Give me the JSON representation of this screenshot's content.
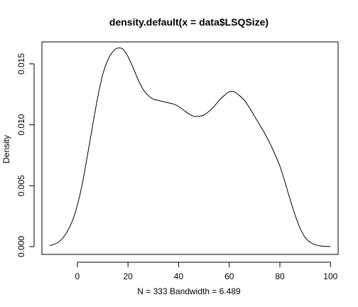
{
  "chart_data": {
    "type": "line",
    "title": "density.default(x = data$LSQSize)",
    "xlabel": "N = 333   Bandwidth = 6.489",
    "ylabel": "Density",
    "xlim": [
      -14,
      103
    ],
    "ylim": [
      -0.00064,
      0.0168
    ],
    "x_ticks": [
      0,
      20,
      40,
      60,
      80,
      100
    ],
    "x_tick_labels": [
      "0",
      "20",
      "40",
      "60",
      "80",
      "100"
    ],
    "y_ticks": [
      0.0,
      0.005,
      0.01,
      0.015
    ],
    "y_tick_labels": [
      "0.000",
      "0.005",
      "0.010",
      "0.015"
    ],
    "grid": false,
    "series": [
      {
        "x": [
          -11,
          -8,
          -5,
          -2,
          0,
          2,
          4,
          6,
          8,
          10,
          12,
          14,
          16,
          18,
          20,
          22,
          24,
          26,
          28,
          30,
          32,
          34,
          36,
          38,
          40,
          42,
          44,
          46,
          48,
          50,
          52,
          54,
          56,
          58,
          60,
          62,
          64,
          66,
          68,
          70,
          72,
          74,
          76,
          78,
          80,
          82,
          84,
          86,
          88,
          90,
          92,
          94,
          96,
          98,
          100
        ],
        "y": [
          8e-05,
          0.0003,
          0.0009,
          0.0021,
          0.0034,
          0.0052,
          0.0075,
          0.0099,
          0.0122,
          0.0141,
          0.0153,
          0.016,
          0.0163,
          0.0162,
          0.0156,
          0.0147,
          0.0137,
          0.0129,
          0.0124,
          0.0121,
          0.012,
          0.0119,
          0.0118,
          0.0117,
          0.0115,
          0.0112,
          0.0109,
          0.0107,
          0.0107,
          0.0108,
          0.0111,
          0.0115,
          0.012,
          0.0124,
          0.0127,
          0.0127,
          0.0124,
          0.012,
          0.0114,
          0.0107,
          0.01,
          0.0093,
          0.0085,
          0.0076,
          0.0066,
          0.0053,
          0.0039,
          0.0026,
          0.0015,
          0.00075,
          0.00035,
          0.00015,
          6e-05,
          2e-05,
          1e-05
        ]
      }
    ]
  }
}
